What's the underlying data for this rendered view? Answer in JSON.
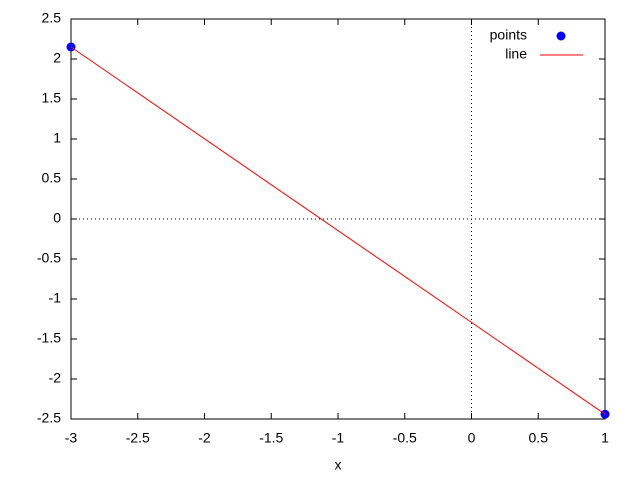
{
  "chart_data": {
    "type": "line",
    "x_label": "x",
    "x": [
      -3,
      1
    ],
    "series": [
      {
        "name": "points",
        "mode": "markers",
        "color": "#0000ff",
        "values": [
          2.15,
          -2.44
        ]
      },
      {
        "name": "line",
        "mode": "lines",
        "color": "#ff0000",
        "values": [
          2.15,
          -2.44
        ]
      }
    ],
    "xlim": [
      -3,
      1
    ],
    "xticks": [
      -3,
      -2.5,
      -2,
      -1.5,
      -1,
      -0.5,
      0,
      0.5,
      1
    ],
    "ylim": [
      -2.5,
      2.5
    ],
    "yticks": [
      -2.5,
      -2,
      -1.5,
      -1,
      -0.5,
      0,
      0.5,
      1,
      1.5,
      2,
      2.5
    ],
    "zeroaxis": true,
    "legend": "top right"
  }
}
